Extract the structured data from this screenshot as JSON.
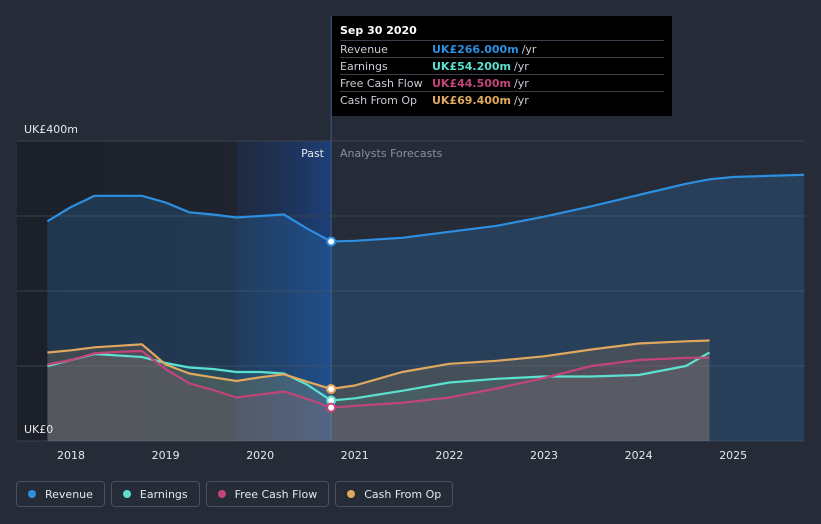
{
  "chart_data": {
    "type": "area",
    "y_unit_label_top": "UK£400m",
    "y_unit_label_bottom": "UK£0",
    "ylim": [
      0,
      400
    ],
    "xlim": [
      2017.7,
      2025.75
    ],
    "x_ticks": [
      "2018",
      "2019",
      "2020",
      "2021",
      "2022",
      "2023",
      "2024",
      "2025"
    ],
    "x_tick_values": [
      2018,
      2019,
      2020,
      2021,
      2022,
      2023,
      2024,
      2025
    ],
    "past_label": "Past",
    "forecast_label": "Analysts Forecasts",
    "divider_x": 2020.75,
    "highlight_start": 2019.75,
    "series": [
      {
        "name": "Revenue",
        "color": "#2d8fe0",
        "x": [
          2017.75,
          2018.0,
          2018.25,
          2018.5,
          2018.75,
          2019.0,
          2019.25,
          2019.5,
          2019.75,
          2020.0,
          2020.25,
          2020.5,
          2020.75,
          2021.0,
          2021.5,
          2022.0,
          2022.5,
          2023.0,
          2023.5,
          2024.0,
          2024.5,
          2024.75,
          2025.0,
          2025.5,
          2025.75
        ],
        "values": [
          293,
          312,
          327,
          327,
          327,
          318,
          305,
          302,
          298,
          300,
          302,
          283,
          266,
          267,
          271,
          279,
          287,
          299,
          313,
          328,
          343,
          349,
          352,
          354,
          355
        ]
      },
      {
        "name": "Earnings",
        "color": "#5ce0d0",
        "x": [
          2017.75,
          2018.0,
          2018.25,
          2018.5,
          2018.75,
          2019.0,
          2019.25,
          2019.5,
          2019.75,
          2020.0,
          2020.25,
          2020.5,
          2020.75,
          2021.0,
          2021.5,
          2022.0,
          2022.5,
          2023.0,
          2023.5,
          2024.0,
          2024.5,
          2024.75
        ],
        "values": [
          100,
          108,
          116,
          114,
          112,
          104,
          98,
          96,
          92,
          92,
          90,
          75,
          54,
          57,
          67,
          78,
          83,
          86,
          86,
          88,
          100,
          118
        ]
      },
      {
        "name": "Free Cash Flow",
        "color": "#c2457a",
        "x": [
          2017.75,
          2018.0,
          2018.25,
          2018.5,
          2018.75,
          2019.0,
          2019.25,
          2019.5,
          2019.75,
          2020.0,
          2020.25,
          2020.5,
          2020.75,
          2021.0,
          2021.5,
          2022.0,
          2022.5,
          2023.0,
          2023.5,
          2024.0,
          2024.5,
          2024.75
        ],
        "values": [
          102,
          108,
          117,
          119,
          120,
          96,
          77,
          68,
          58,
          62,
          66,
          56,
          44.5,
          47,
          51,
          58,
          70,
          84,
          100,
          108,
          111,
          111
        ]
      },
      {
        "name": "Cash From Op",
        "color": "#e0a85e",
        "x": [
          2017.75,
          2018.0,
          2018.25,
          2018.5,
          2018.75,
          2019.0,
          2019.25,
          2019.5,
          2019.75,
          2020.0,
          2020.25,
          2020.5,
          2020.75,
          2021.0,
          2021.5,
          2022.0,
          2022.5,
          2023.0,
          2023.5,
          2024.0,
          2024.5,
          2024.75
        ],
        "values": [
          118,
          121,
          125,
          127,
          129,
          102,
          90,
          85,
          80,
          85,
          89,
          79,
          69.4,
          74,
          92,
          103,
          107,
          113,
          122,
          130,
          133,
          134
        ]
      }
    ],
    "markers_at": 2020.75
  },
  "tooltip": {
    "date": "Sep 30 2020",
    "rows": [
      {
        "label": "Revenue",
        "value": "UK£266.000m",
        "unit": "/yr",
        "color": "#2d8fe0"
      },
      {
        "label": "Earnings",
        "value": "UK£54.200m",
        "unit": "/yr",
        "color": "#5ce0d0"
      },
      {
        "label": "Free Cash Flow",
        "value": "UK£44.500m",
        "unit": "/yr",
        "color": "#c2457a"
      },
      {
        "label": "Cash From Op",
        "value": "UK£69.400m",
        "unit": "/yr",
        "color": "#e0a85e"
      }
    ]
  },
  "legend": [
    {
      "label": "Revenue",
      "color": "#2d8fe0"
    },
    {
      "label": "Earnings",
      "color": "#5ce0d0"
    },
    {
      "label": "Free Cash Flow",
      "color": "#c2457a"
    },
    {
      "label": "Cash From Op",
      "color": "#e0a85e"
    }
  ]
}
